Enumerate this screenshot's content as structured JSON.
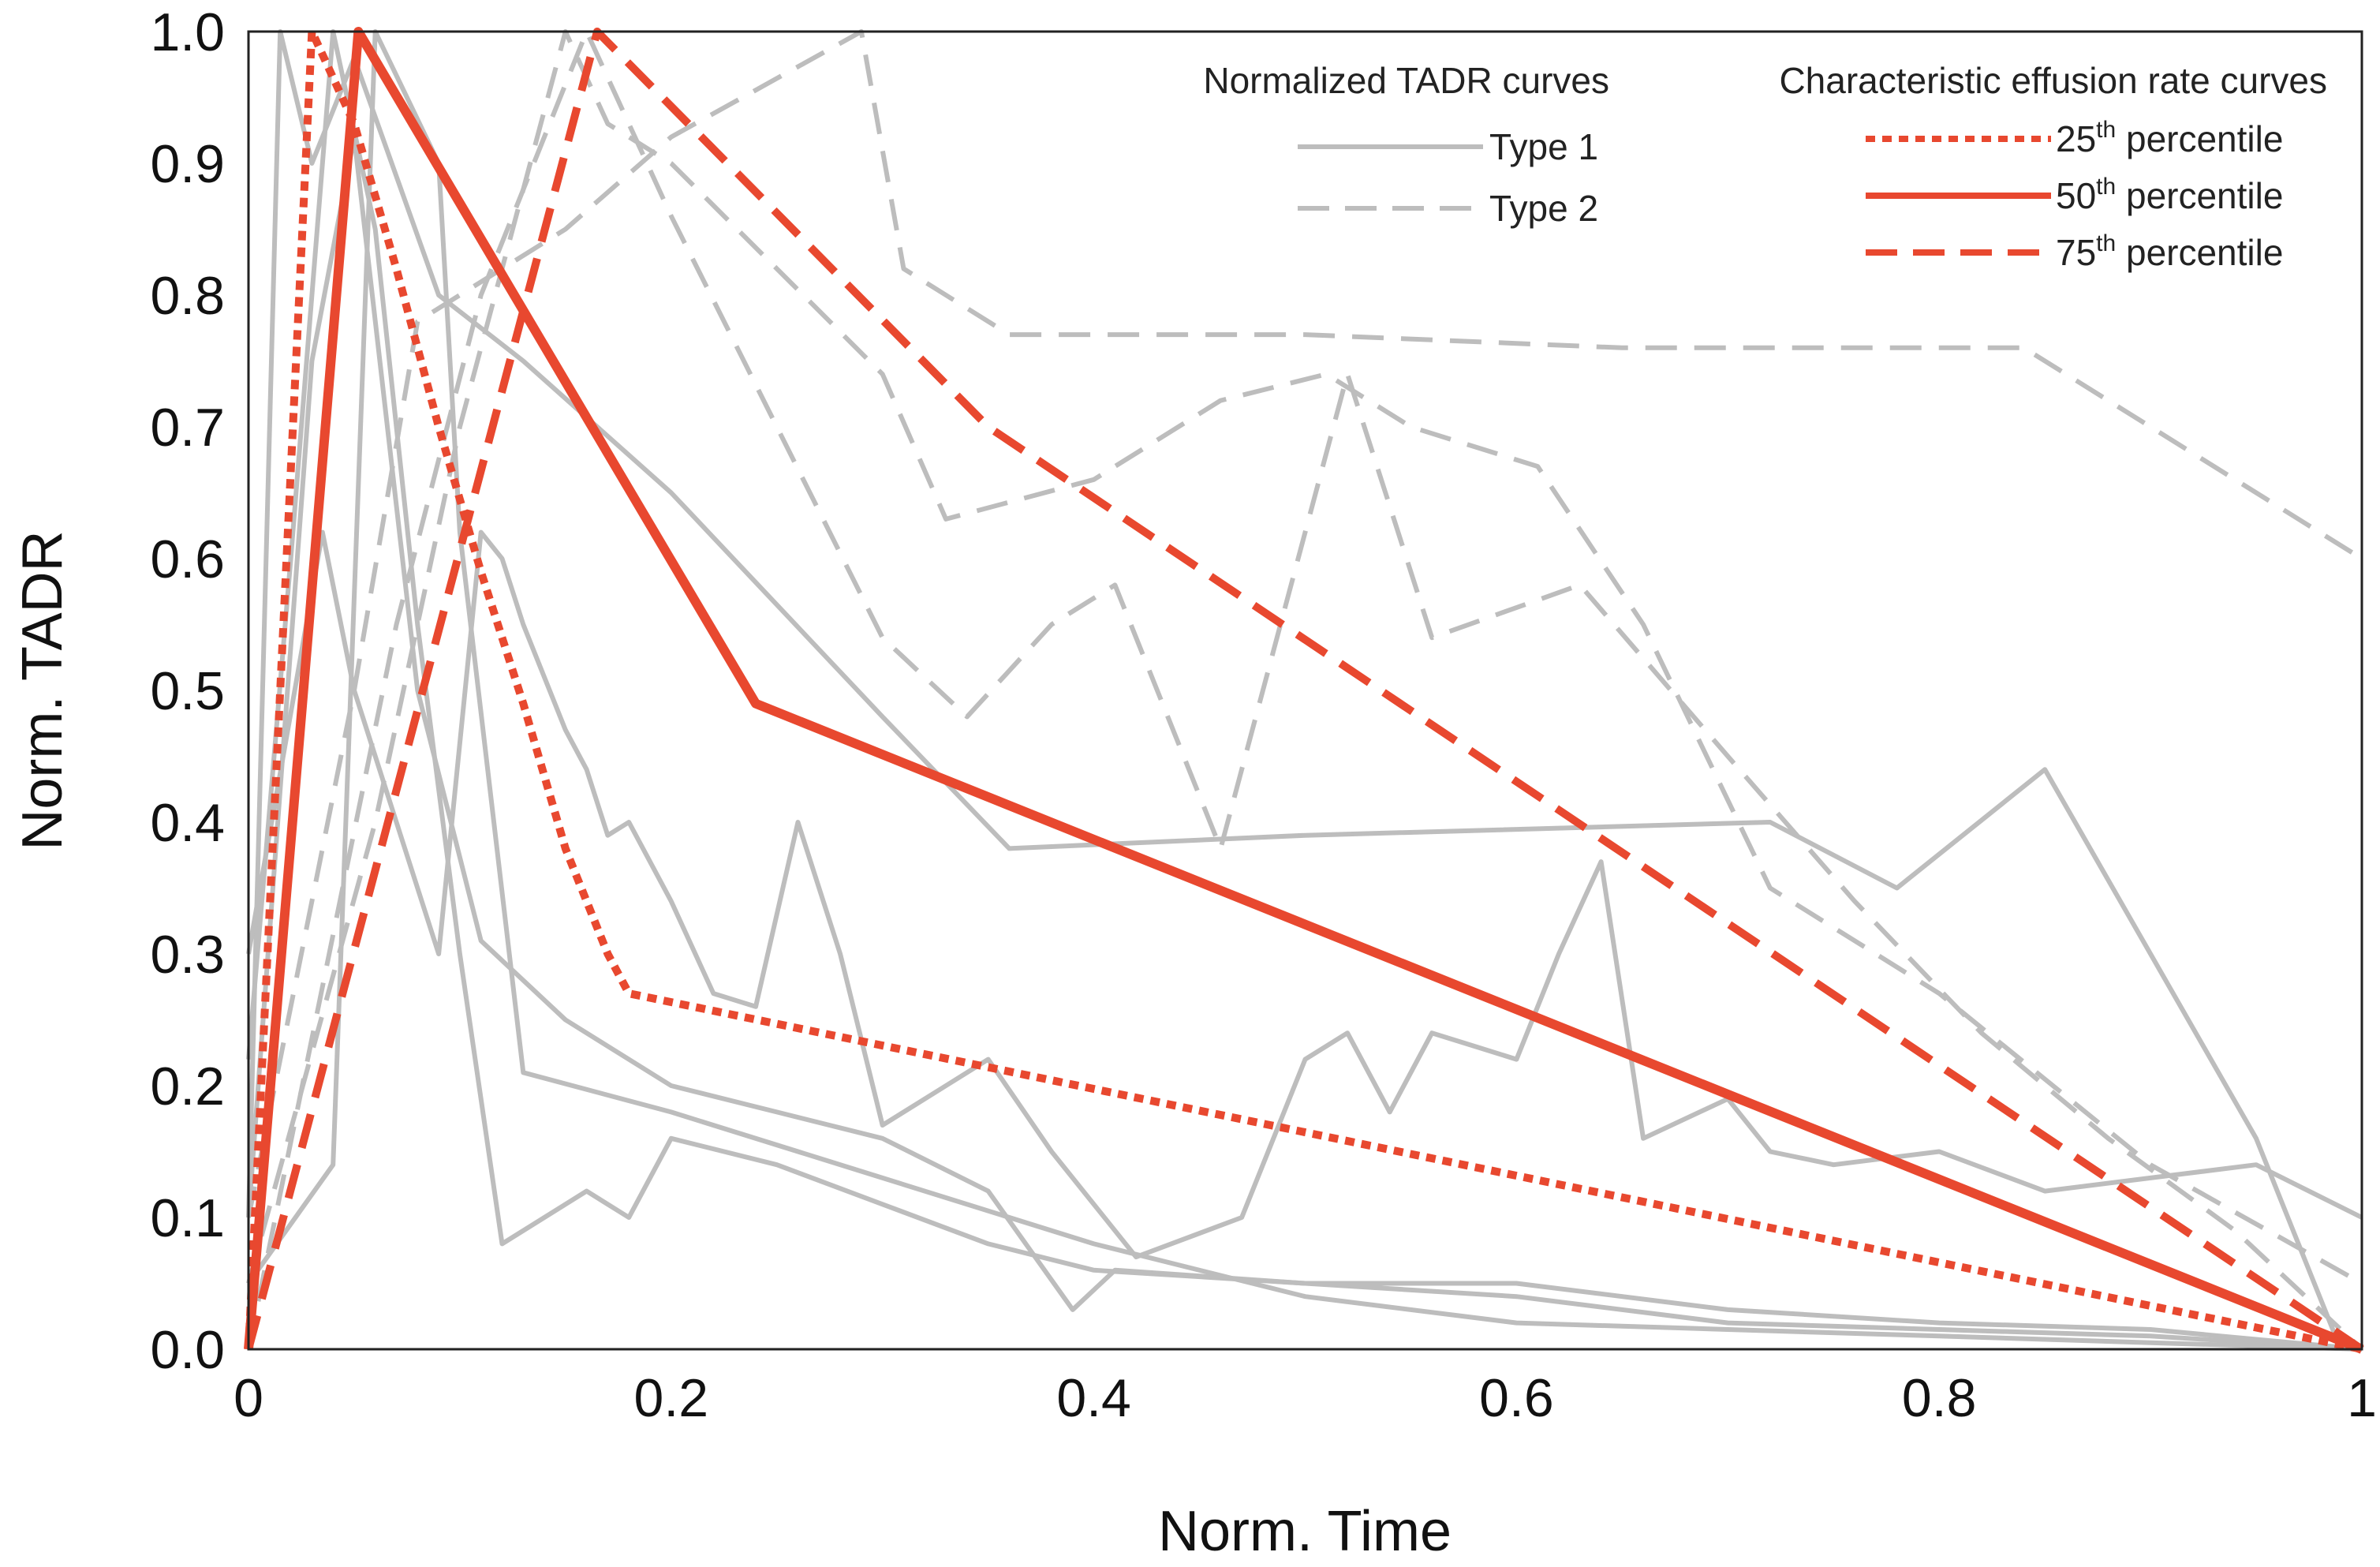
{
  "chart_data": {
    "type": "line",
    "title": "",
    "xlabel": "Norm. Time",
    "ylabel": "Norm. TADR",
    "xlim": [
      0,
      1
    ],
    "ylim": [
      0,
      1
    ],
    "x_ticks": [
      0,
      0.2,
      0.4,
      0.6,
      0.8,
      1
    ],
    "x_tick_labels": [
      "0",
      "0.2",
      "0.4",
      "0.6",
      "0.8",
      "1"
    ],
    "y_ticks": [
      0,
      0.1,
      0.2,
      0.3,
      0.4,
      0.5,
      0.6,
      0.7,
      0.8,
      0.9,
      1.0
    ],
    "y_tick_labels": [
      "0.0",
      "0.1",
      "0.2",
      "0.3",
      "0.4",
      "0.5",
      "0.6",
      "0.7",
      "0.8",
      "0.9",
      "1.0"
    ],
    "legend": {
      "placement": "top-right",
      "group1_title": "Normalized TADR curves",
      "group2_title": "Characteristic effusion rate curves",
      "entries": [
        {
          "label": "Type 1",
          "group": 1,
          "style": "solid",
          "color": "#BDBDBD"
        },
        {
          "label": "Type 2",
          "group": 1,
          "style": "dashed",
          "color": "#BDBDBD"
        },
        {
          "label": "25",
          "suffix": "th",
          "label_rest": " percentile",
          "group": 2,
          "style": "dotted",
          "color": "#E8482F"
        },
        {
          "label": "50",
          "suffix": "th",
          "label_rest": " percentile",
          "group": 2,
          "style": "solid",
          "color": "#E8482F"
        },
        {
          "label": "75",
          "suffix": "th",
          "label_rest": " percentile",
          "group": 2,
          "style": "dashed",
          "color": "#E8482F"
        }
      ]
    },
    "colors": {
      "gray": "#BDBDBD",
      "red": "#E8482F",
      "axis": "#222222"
    },
    "series": [
      {
        "name": "25th percentile",
        "kind": "characteristic",
        "style": "dotted",
        "color": "#E8482F",
        "width": 10,
        "x": [
          0,
          0.03,
          0.05,
          0.07,
          0.09,
          0.11,
          0.13,
          0.15,
          0.17,
          0.18,
          1.0
        ],
        "y": [
          0,
          1.0,
          0.93,
          0.82,
          0.7,
          0.59,
          0.49,
          0.38,
          0.3,
          0.27,
          0.0
        ]
      },
      {
        "name": "50th percentile",
        "kind": "characteristic",
        "style": "solid",
        "color": "#E8482F",
        "width": 12,
        "x": [
          0,
          0.052,
          0.24,
          1.0
        ],
        "y": [
          0,
          1.0,
          0.49,
          0.0
        ]
      },
      {
        "name": "75th percentile",
        "kind": "characteristic",
        "style": "dashed",
        "color": "#E8482F",
        "width": 10,
        "x": [
          0,
          0.165,
          0.35,
          1.0
        ],
        "y": [
          0,
          1.0,
          0.7,
          0.0
        ]
      },
      {
        "name": "Type 1 curve A",
        "kind": "tadr",
        "style": "solid",
        "color": "#BDBDBD",
        "width": 6,
        "x": [
          0,
          0.015,
          0.03,
          0.05,
          0.09,
          0.13,
          0.2,
          0.3,
          0.36,
          0.5,
          0.72,
          0.78,
          0.85,
          0.95,
          0.99
        ],
        "y": [
          0.1,
          1.0,
          0.9,
          0.98,
          0.8,
          0.75,
          0.65,
          0.48,
          0.38,
          0.39,
          0.4,
          0.35,
          0.44,
          0.16,
          0.0
        ]
      },
      {
        "name": "Type 1 curve B",
        "kind": "tadr",
        "style": "solid",
        "color": "#BDBDBD",
        "width": 6,
        "x": [
          0,
          0.035,
          0.05,
          0.07,
          0.09,
          0.11,
          0.12,
          0.13,
          0.15,
          0.16,
          0.17,
          0.18,
          0.2,
          0.22,
          0.24,
          0.26,
          0.28,
          0.3,
          0.33,
          0.35,
          0.38,
          0.42,
          0.47,
          0.5,
          0.52,
          0.54,
          0.56,
          0.58,
          0.6,
          0.62,
          0.64,
          0.66,
          0.7,
          0.72,
          0.75,
          0.8,
          0.85,
          0.9,
          0.95,
          1.0
        ],
        "y": [
          0.3,
          0.62,
          0.5,
          0.4,
          0.3,
          0.62,
          0.6,
          0.55,
          0.47,
          0.44,
          0.39,
          0.4,
          0.34,
          0.27,
          0.26,
          0.4,
          0.3,
          0.17,
          0.2,
          0.22,
          0.15,
          0.07,
          0.1,
          0.22,
          0.24,
          0.18,
          0.24,
          0.23,
          0.22,
          0.3,
          0.37,
          0.16,
          0.19,
          0.15,
          0.14,
          0.15,
          0.12,
          0.13,
          0.14,
          0.1
        ]
      },
      {
        "name": "Type 1 curve C",
        "kind": "tadr",
        "style": "solid",
        "color": "#BDBDBD",
        "width": 6,
        "x": [
          0,
          0.02,
          0.04,
          0.06,
          0.08,
          0.1,
          0.12,
          0.16,
          0.18,
          0.2,
          0.25,
          0.3,
          0.35,
          0.4,
          0.5,
          0.6,
          0.7,
          0.8,
          0.9,
          1.0
        ],
        "y": [
          0.22,
          0.6,
          1.0,
          0.85,
          0.55,
          0.3,
          0.08,
          0.12,
          0.1,
          0.16,
          0.14,
          0.11,
          0.08,
          0.06,
          0.05,
          0.04,
          0.02,
          0.015,
          0.01,
          0.0
        ]
      },
      {
        "name": "Type 1 curve D",
        "kind": "tadr",
        "style": "solid",
        "color": "#BDBDBD",
        "width": 6,
        "x": [
          0,
          0.03,
          0.05,
          0.08,
          0.11,
          0.15,
          0.2,
          0.25,
          0.3,
          0.35,
          0.39,
          0.41,
          0.5,
          0.6,
          0.7,
          0.8,
          0.9,
          1.0
        ],
        "y": [
          0.1,
          0.75,
          0.92,
          0.5,
          0.31,
          0.25,
          0.2,
          0.18,
          0.16,
          0.12,
          0.03,
          0.06,
          0.05,
          0.05,
          0.03,
          0.02,
          0.015,
          0.0
        ]
      },
      {
        "name": "Type 1 curve E",
        "kind": "tadr",
        "style": "solid",
        "color": "#BDBDBD",
        "width": 6,
        "x": [
          0,
          0.04,
          0.06,
          0.09,
          0.1,
          0.13,
          0.2,
          0.3,
          0.4,
          0.5,
          0.6,
          0.7,
          0.8,
          0.9,
          1.0
        ],
        "y": [
          0.05,
          0.14,
          1.0,
          0.9,
          0.62,
          0.21,
          0.18,
          0.13,
          0.08,
          0.04,
          0.02,
          0.015,
          0.01,
          0.005,
          0.0
        ]
      },
      {
        "name": "Type 2 curve A",
        "kind": "tadr",
        "style": "dashed",
        "color": "#BDBDBD",
        "width": 6,
        "x": [
          0,
          0.05,
          0.08,
          0.15,
          0.2,
          0.29,
          0.31,
          0.33,
          0.36,
          0.5,
          0.65,
          0.84,
          1.0
        ],
        "y": [
          0.1,
          0.5,
          0.78,
          0.85,
          0.92,
          1.0,
          0.82,
          0.8,
          0.77,
          0.77,
          0.76,
          0.76,
          0.6
        ]
      },
      {
        "name": "Type 2 curve B",
        "kind": "tadr",
        "style": "dashed",
        "color": "#BDBDBD",
        "width": 6,
        "x": [
          0,
          0.06,
          0.1,
          0.15,
          0.17,
          0.2,
          0.25,
          0.3,
          0.33,
          0.4,
          0.46,
          0.51,
          0.55,
          0.61,
          0.66,
          0.72,
          0.8,
          0.9,
          1.0
        ],
        "y": [
          0.05,
          0.4,
          0.7,
          1.0,
          0.93,
          0.9,
          0.82,
          0.74,
          0.63,
          0.66,
          0.72,
          0.74,
          0.7,
          0.67,
          0.55,
          0.35,
          0.27,
          0.14,
          0.05
        ]
      },
      {
        "name": "Type 2 curve C",
        "kind": "tadr",
        "style": "dashed",
        "color": "#BDBDBD",
        "width": 6,
        "x": [
          0,
          0.07,
          0.11,
          0.16,
          0.2,
          0.25,
          0.3,
          0.34,
          0.38,
          0.41,
          0.46,
          0.52,
          0.56,
          0.63,
          0.7,
          0.76,
          0.82,
          0.88,
          0.94,
          1.0
        ],
        "y": [
          0.0,
          0.55,
          0.8,
          1.0,
          0.86,
          0.7,
          0.54,
          0.48,
          0.55,
          0.58,
          0.38,
          0.74,
          0.54,
          0.58,
          0.45,
          0.34,
          0.24,
          0.16,
          0.09,
          0.0
        ]
      }
    ]
  }
}
